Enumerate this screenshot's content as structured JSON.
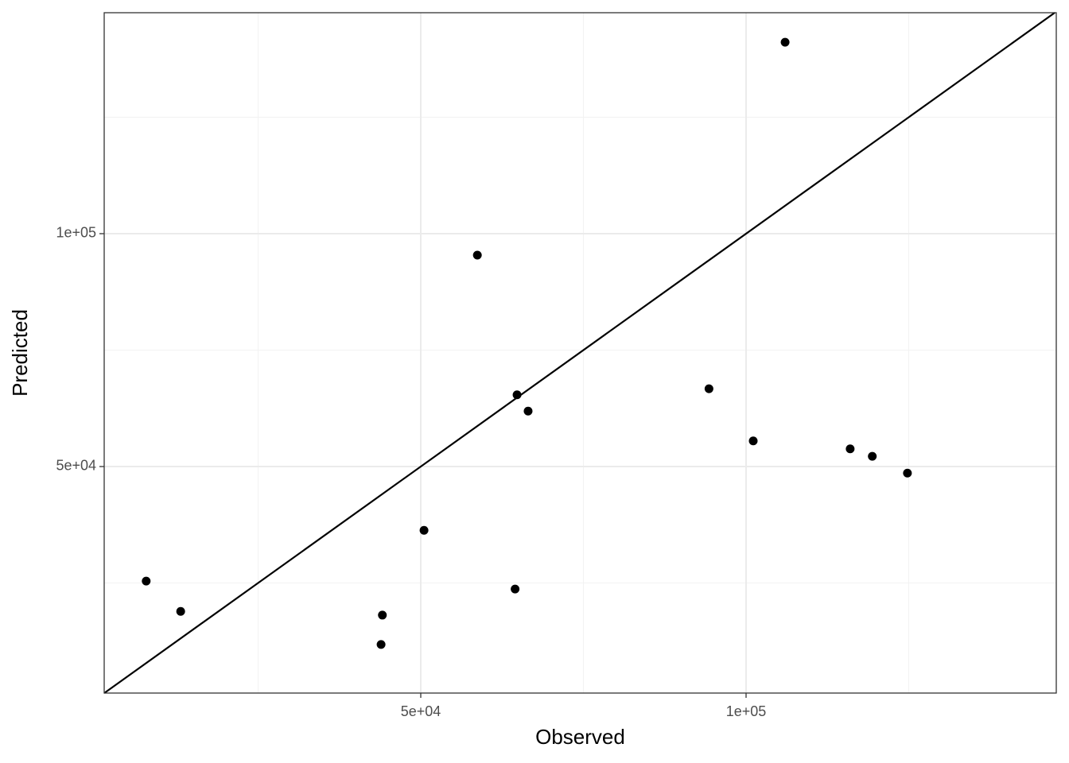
{
  "chart_data": {
    "type": "scatter",
    "x_label": "Observed",
    "y_label": "Predicted",
    "x": [
      7800,
      13100,
      44100,
      43900,
      50500,
      64500,
      58700,
      64800,
      66500,
      94300,
      101100,
      106000,
      116000,
      119400,
      124800
    ],
    "values": [
      25400,
      18900,
      18100,
      11800,
      36300,
      23700,
      95400,
      65400,
      61900,
      66700,
      55500,
      141100,
      53800,
      52200,
      48600
    ],
    "color": "#000000",
    "xlim": [
      1345,
      147677
    ],
    "ylim": [
      1365,
      147440
    ],
    "xticks": [
      {
        "value": 50000,
        "label": "5e+04"
      },
      {
        "value": 100000,
        "label": "1e+05"
      }
    ],
    "yticks": [
      {
        "value": 50000,
        "label": "5e+04"
      },
      {
        "value": 100000,
        "label": "1e+05"
      }
    ],
    "x_minor_grid": [
      25000,
      75000,
      125000
    ],
    "y_minor_grid": [
      25000,
      75000,
      125000
    ],
    "grid": true,
    "identity_line": true
  }
}
